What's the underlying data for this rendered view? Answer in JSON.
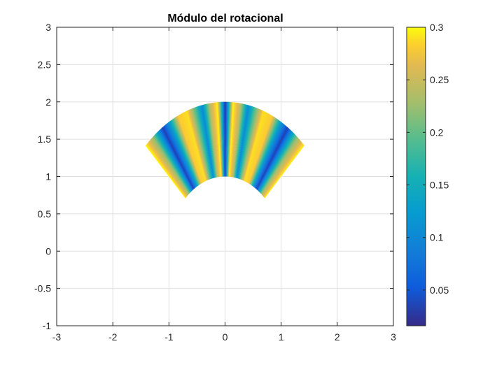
{
  "chart_data": {
    "type": "heatmap",
    "title": "Módulo del rotacional",
    "xlabel": "",
    "ylabel": "",
    "xlim": [
      -3,
      3
    ],
    "ylim": [
      -1,
      3
    ],
    "xticks": [
      -3,
      -2,
      -1,
      0,
      1,
      2,
      3
    ],
    "xtick_labels": [
      "-3",
      "-2",
      "-1",
      "0",
      "1",
      "2",
      "3"
    ],
    "yticks": [
      -1,
      -0.5,
      0,
      0.5,
      1,
      1.5,
      2,
      2.5,
      3
    ],
    "ytick_labels": [
      "-1",
      "-0.5",
      "0",
      "0.5",
      "1",
      "1.5",
      "2",
      "2.5",
      "3"
    ],
    "grid": true,
    "region": {
      "shape": "annular-sector",
      "r_inner": 1,
      "r_outer": 2,
      "theta_min_deg": 45,
      "theta_max_deg": 135
    },
    "field": {
      "description_values": "|curl| varies with polar angle only",
      "angles_deg": [
        45,
        50,
        56,
        60,
        65,
        70,
        75,
        78,
        82,
        86,
        90,
        94,
        98,
        102,
        105,
        110,
        115,
        120,
        124,
        130,
        135
      ],
      "values": [
        0.3,
        0.22,
        0.03,
        0.12,
        0.28,
        0.29,
        0.18,
        0.1,
        0.24,
        0.3,
        0.02,
        0.3,
        0.24,
        0.1,
        0.18,
        0.29,
        0.28,
        0.12,
        0.03,
        0.22,
        0.3
      ]
    },
    "colorbar": {
      "location": "right",
      "clim": [
        0.016,
        0.3
      ],
      "ticks": [
        0.05,
        0.1,
        0.15,
        0.2,
        0.25,
        0.3
      ],
      "tick_labels": [
        "0.05",
        "0.1",
        "0.15",
        "0.2",
        "0.25",
        "0.3"
      ],
      "colormap": "parula"
    }
  }
}
